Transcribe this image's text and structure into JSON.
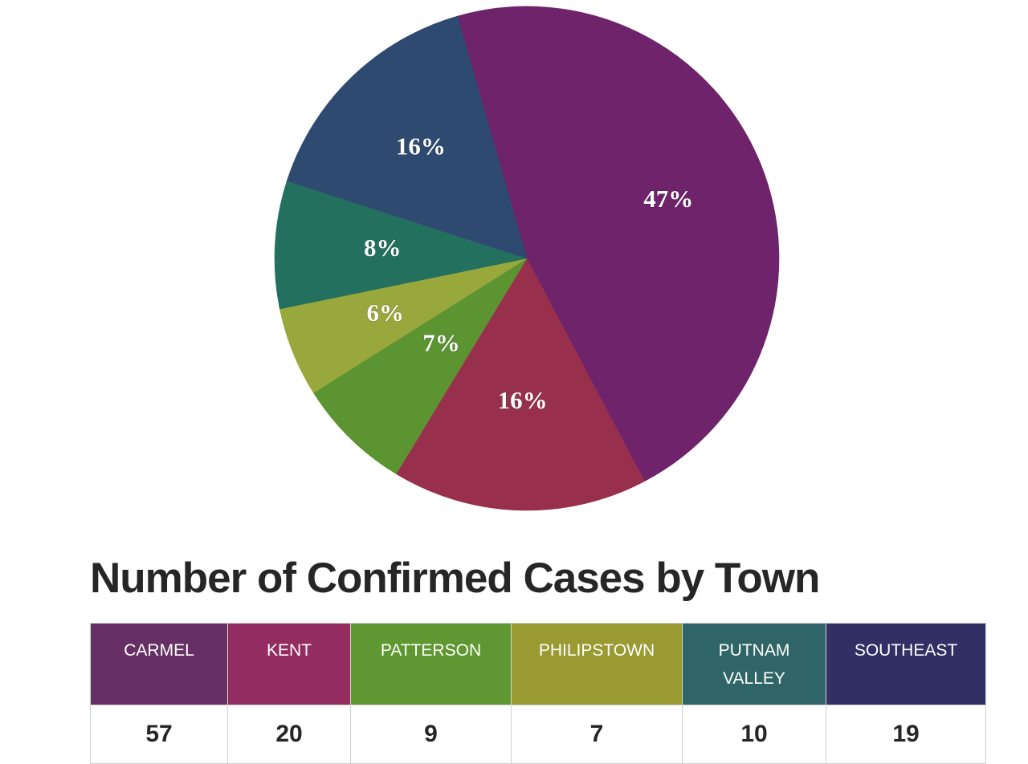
{
  "chart_data": {
    "type": "pie",
    "title": "Number of Confirmed Cases by Town",
    "categories": [
      "Carmel",
      "Kent",
      "Patterson",
      "Philipstown",
      "Putnam Valley",
      "Southeast"
    ],
    "slices": [
      {
        "name": "Carmel",
        "label": "47%",
        "value": 57,
        "color": "#6e236a"
      },
      {
        "name": "Kent",
        "label": "16%",
        "value": 20,
        "color": "#98304d"
      },
      {
        "name": "Patterson",
        "label": "7%",
        "value": 9,
        "color": "#5c9432"
      },
      {
        "name": "Philipstown",
        "label": "6%",
        "value": 7,
        "color": "#98a83c"
      },
      {
        "name": "Putnam Valley",
        "label": "8%",
        "value": 10,
        "color": "#24705f"
      },
      {
        "name": "Southeast",
        "label": "16%",
        "value": 19,
        "color": "#2e4a70"
      }
    ]
  },
  "table": {
    "title": "Number of Confirmed Cases by Town",
    "columns": [
      {
        "header": "CARMEL",
        "value": "57",
        "color": "#673064"
      },
      {
        "header": "KENT",
        "value": "20",
        "color": "#932c60"
      },
      {
        "header": "PATTERSON",
        "value": "9",
        "color": "#5f9832"
      },
      {
        "header": "PHILIPSTOWN",
        "value": "7",
        "color": "#9a9a32"
      },
      {
        "header": "PUTNAM VALLEY",
        "value": "10",
        "color": "#2f6566"
      },
      {
        "header": "SOUTHEAST",
        "value": "19",
        "color": "#312f63"
      }
    ]
  }
}
